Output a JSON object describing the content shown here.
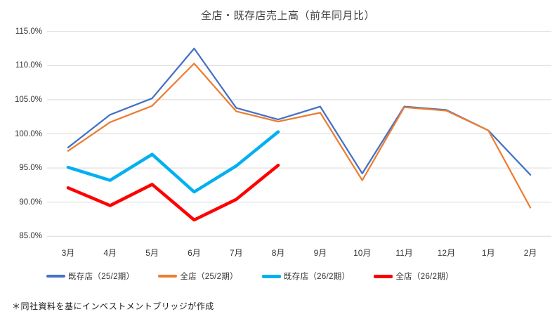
{
  "title": "全店・既存店売上高（前年同月比）",
  "footnote": "＊同社資料を基にインベストメントブリッジが作成",
  "colors": {
    "gridline": "#D9D9D9",
    "title_text": "#404040",
    "axis_text": "#333333"
  },
  "chart_data": {
    "type": "line",
    "title": "全店・既存店売上高（前年同月比）",
    "categories": [
      "3月",
      "4月",
      "5月",
      "6月",
      "7月",
      "8月",
      "9月",
      "10月",
      "11月",
      "12月",
      "1月",
      "2月"
    ],
    "series": [
      {
        "name": "既存店（25/2期）",
        "color": "#4472C4",
        "width": 2.25,
        "values": [
          98.0,
          102.8,
          105.2,
          112.5,
          103.8,
          102.1,
          104.0,
          94.2,
          104.0,
          103.5,
          100.5,
          94.0
        ]
      },
      {
        "name": "全店（25/2期）",
        "color": "#ED7D31",
        "width": 2.25,
        "values": [
          97.5,
          101.7,
          104.1,
          110.3,
          103.3,
          101.8,
          103.1,
          93.2,
          103.9,
          103.4,
          100.5,
          89.2
        ]
      },
      {
        "name": "既存店（26/2期）",
        "color": "#00B0F0",
        "width": 4.5,
        "values": [
          95.1,
          93.2,
          97.0,
          91.5,
          95.3,
          100.3
        ]
      },
      {
        "name": "全店（26/2期）",
        "color": "#FF0000",
        "width": 4.5,
        "values": [
          92.1,
          89.5,
          92.6,
          87.4,
          90.4,
          95.4
        ]
      }
    ],
    "y_ticks": [
      "115.0%",
      "110.0%",
      "105.0%",
      "100.0%",
      "95.0%",
      "90.0%",
      "85.0%"
    ],
    "y_tick_values": [
      115,
      110,
      105,
      100,
      95,
      90,
      85
    ],
    "ylim": [
      85,
      115
    ],
    "xlabel": "",
    "ylabel": "",
    "grid": true,
    "legend_position": "bottom"
  }
}
